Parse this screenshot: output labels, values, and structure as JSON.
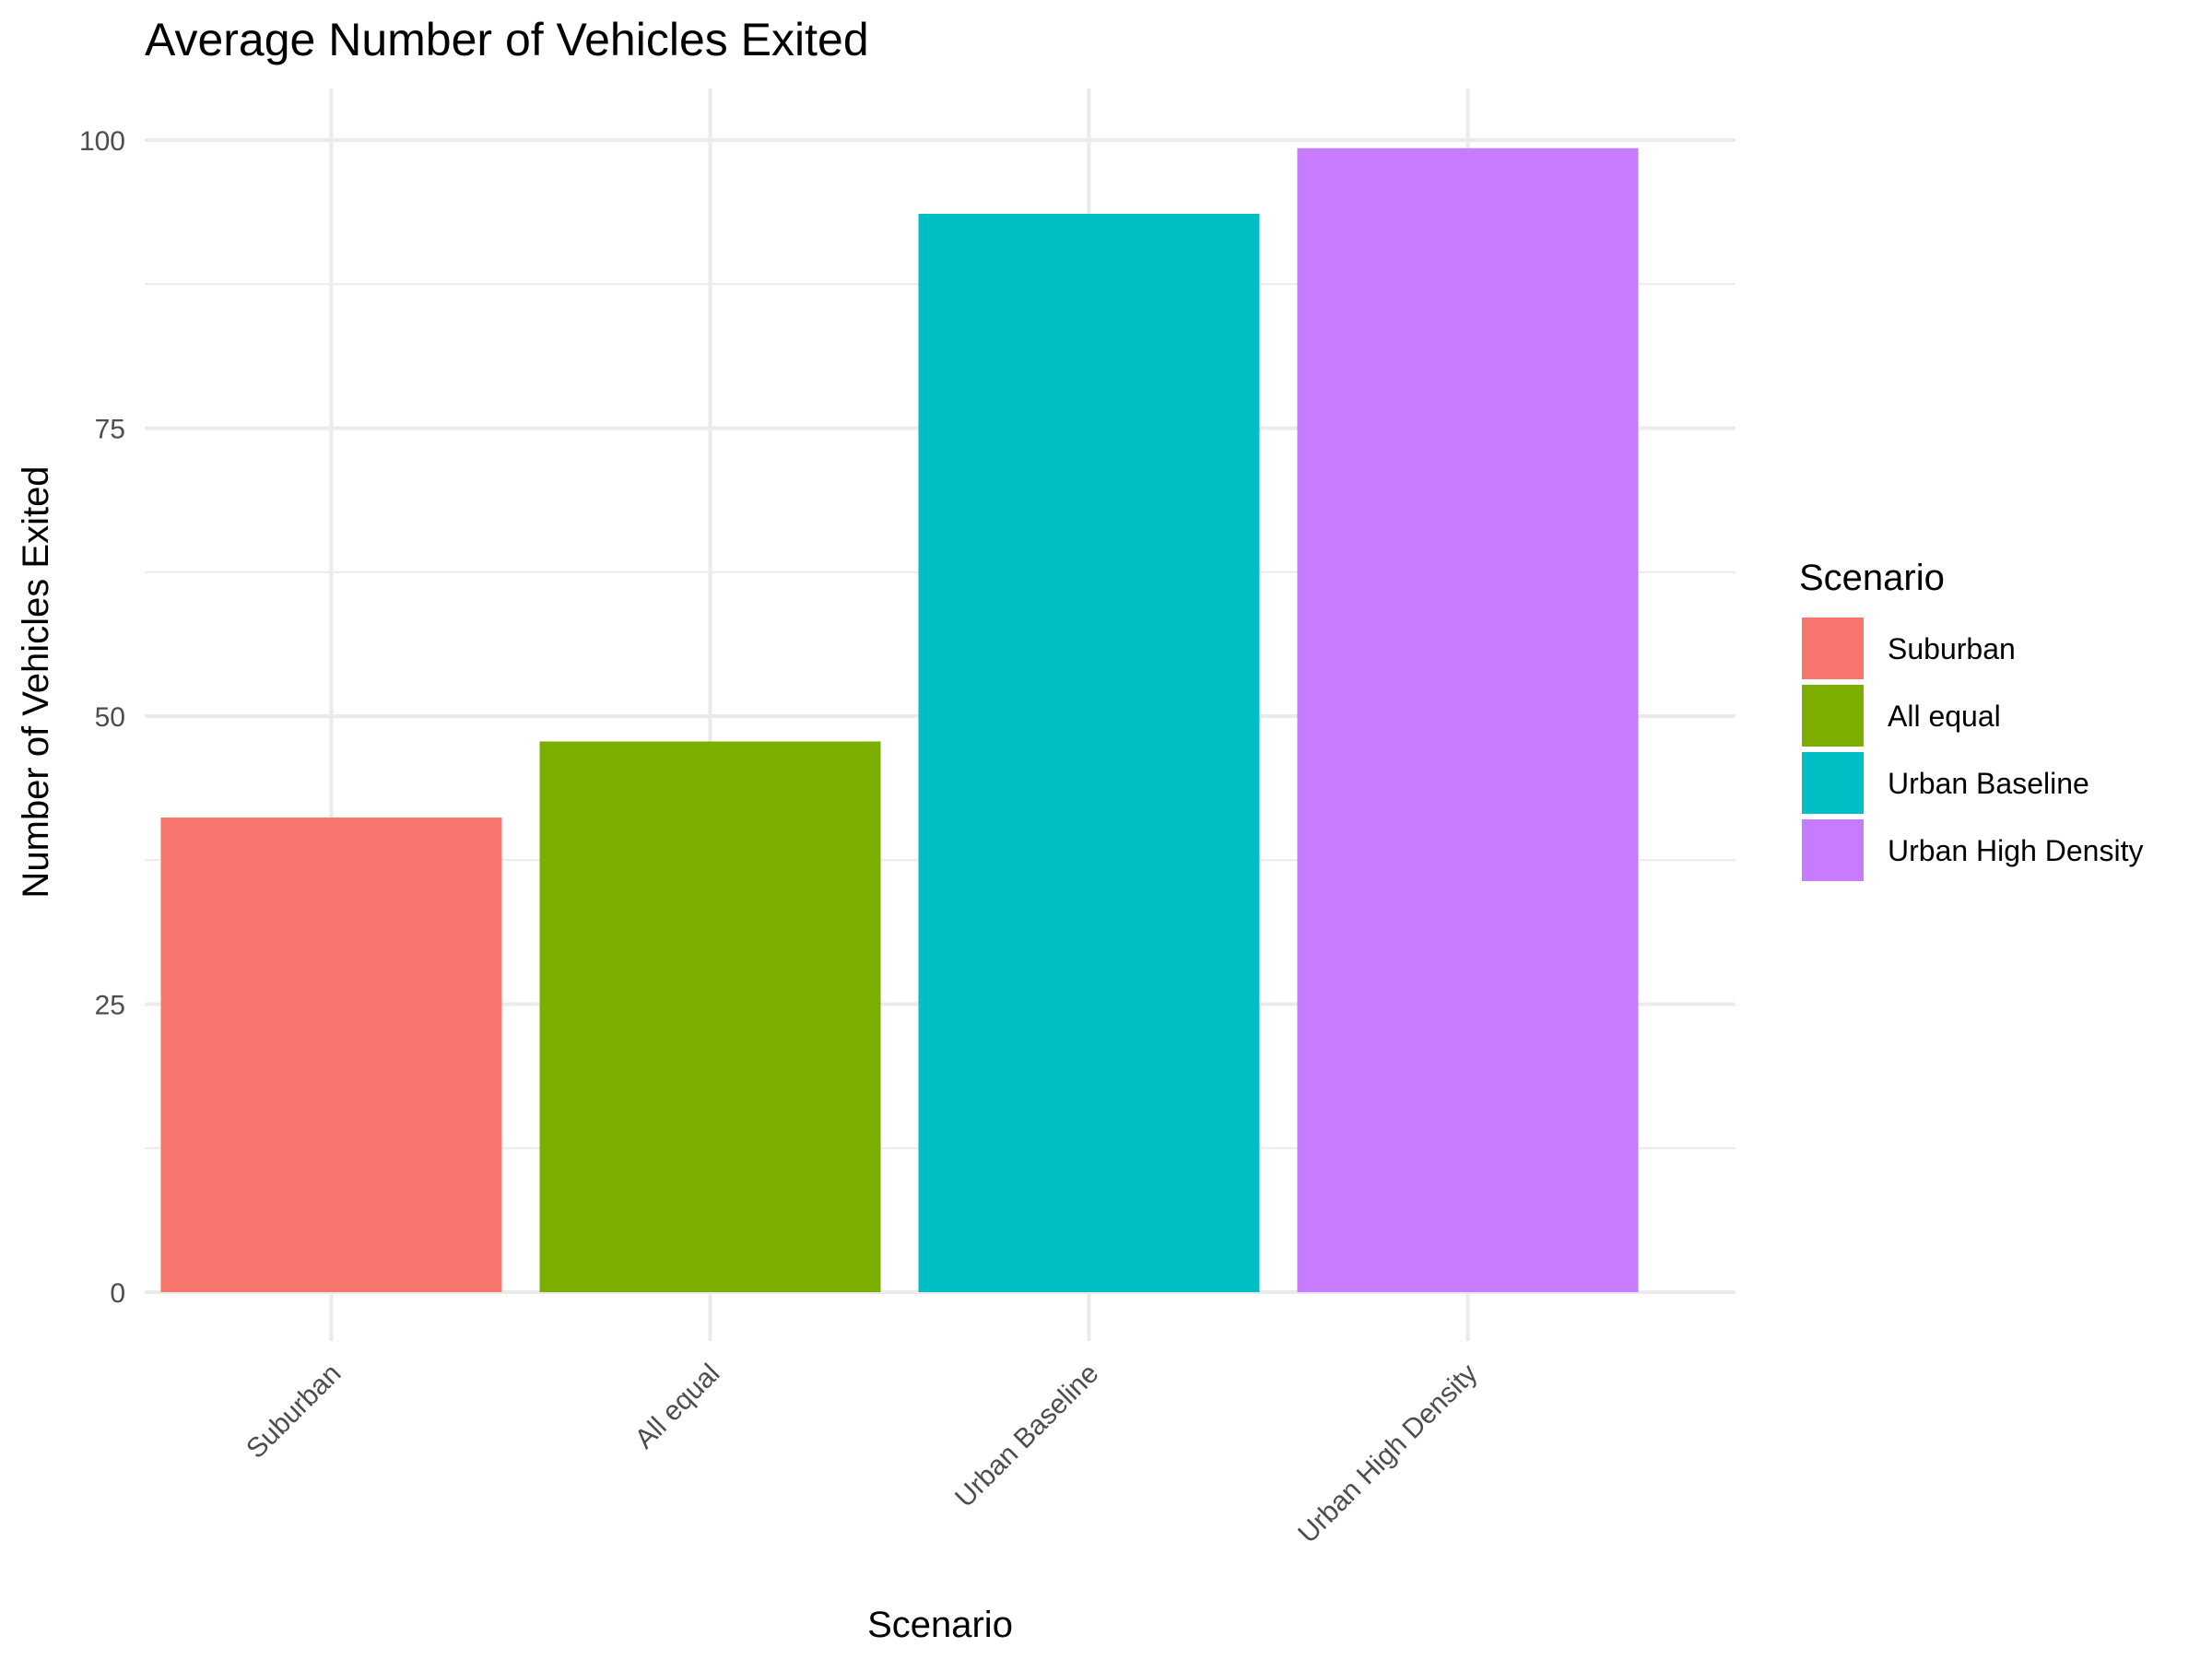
{
  "chart_data": {
    "type": "bar",
    "title": "Average Number of Vehicles Exited",
    "xlabel": "Scenario",
    "ylabel": "Number of Vehicles Exited",
    "categories": [
      "Suburban",
      "All equal",
      "Urban Baseline",
      "Urban High Density"
    ],
    "values": [
      41.2,
      47.8,
      93.6,
      99.3
    ],
    "colors": [
      "#F8766D",
      "#7CAE00",
      "#00BFC4",
      "#C77CFF"
    ],
    "ylim": [
      0,
      104.5
    ],
    "yticks": [
      0,
      25,
      50,
      75,
      100
    ],
    "grid": true,
    "legend": {
      "title": "Scenario",
      "position": "right",
      "items": [
        "Suburban",
        "All equal",
        "Urban Baseline",
        "Urban High Density"
      ]
    }
  }
}
